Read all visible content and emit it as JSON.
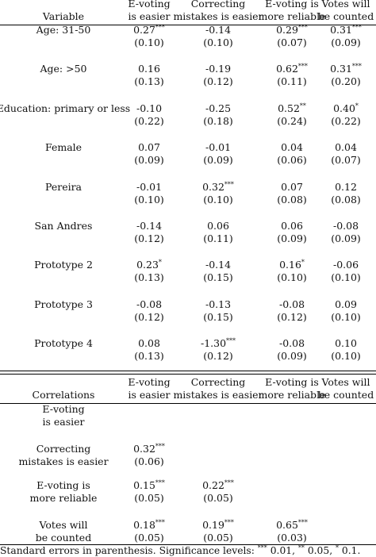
{
  "regression": {
    "columns": [
      [
        "E-voting",
        "is easier"
      ],
      [
        "Correcting",
        "mistakes is easier"
      ],
      [
        "E-voting is",
        "more reliable"
      ],
      [
        "Votes will",
        "be counted"
      ]
    ],
    "variable_header": "Variable",
    "rows": [
      {
        "label": "Age: 31-50",
        "coef": [
          [
            "0.27",
            "***"
          ],
          [
            "-0.14",
            ""
          ],
          [
            "0.29",
            "***"
          ],
          [
            "0.31",
            "***"
          ]
        ],
        "se": [
          "(0.10)",
          "(0.10)",
          "(0.07)",
          "(0.09)"
        ]
      },
      {
        "label": "Age: >50",
        "coef": [
          [
            "0.16",
            ""
          ],
          [
            "-0.19",
            ""
          ],
          [
            "0.62",
            "***"
          ],
          [
            "0.31",
            "***"
          ]
        ],
        "se": [
          "(0.13)",
          "(0.12)",
          "(0.11)",
          "(0.20)"
        ]
      },
      {
        "label": "Education: primary or less",
        "coef": [
          [
            "-0.10",
            ""
          ],
          [
            "-0.25",
            ""
          ],
          [
            "0.52",
            "**"
          ],
          [
            "0.40",
            "*"
          ]
        ],
        "se": [
          "(0.22)",
          "(0.18)",
          "(0.24)",
          "(0.22)"
        ]
      },
      {
        "label": "Female",
        "coef": [
          [
            "0.07",
            ""
          ],
          [
            "-0.01",
            ""
          ],
          [
            "0.04",
            ""
          ],
          [
            "0.04",
            ""
          ]
        ],
        "se": [
          "(0.09)",
          "(0.09)",
          "(0.06)",
          "(0.07)"
        ]
      },
      {
        "label": "Pereira",
        "coef": [
          [
            "-0.01",
            ""
          ],
          [
            "0.32",
            "***"
          ],
          [
            "0.07",
            ""
          ],
          [
            "0.12",
            ""
          ]
        ],
        "se": [
          "(0.10)",
          "(0.10)",
          "(0.08)",
          "(0.08)"
        ]
      },
      {
        "label": "San Andres",
        "coef": [
          [
            "-0.14",
            ""
          ],
          [
            "0.06",
            ""
          ],
          [
            "0.06",
            ""
          ],
          [
            "-0.08",
            ""
          ]
        ],
        "se": [
          "(0.12)",
          "(0.11)",
          "(0.09)",
          "(0.09)"
        ]
      },
      {
        "label": "Prototype 2",
        "coef": [
          [
            "0.23",
            "*"
          ],
          [
            "-0.14",
            ""
          ],
          [
            "0.16",
            "*"
          ],
          [
            "-0.06",
            ""
          ]
        ],
        "se": [
          "(0.13)",
          "(0.15)",
          "(0.10)",
          "(0.10)"
        ]
      },
      {
        "label": "Prototype 3",
        "coef": [
          [
            "-0.08",
            ""
          ],
          [
            "-0.13",
            ""
          ],
          [
            "-0.08",
            ""
          ],
          [
            "0.09",
            ""
          ]
        ],
        "se": [
          "(0.12)",
          "(0.15)",
          "(0.12)",
          "(0.10)"
        ]
      },
      {
        "label": "Prototype 4",
        "coef": [
          [
            "0.08",
            ""
          ],
          [
            "-1.30",
            "***"
          ],
          [
            "-0.08",
            ""
          ],
          [
            "0.10",
            ""
          ]
        ],
        "se": [
          "(0.13)",
          "(0.12)",
          "(0.09)",
          "(0.10)"
        ]
      }
    ]
  },
  "correlations": {
    "header": "Correlations",
    "columns": [
      [
        "E-voting",
        "is easier"
      ],
      [
        "Correcting",
        "mistakes is easier"
      ],
      [
        "E-voting is",
        "more reliable"
      ],
      [
        "Votes will",
        "be counted"
      ]
    ],
    "rows": [
      {
        "label": [
          "E-voting",
          "is easier"
        ],
        "coef": [],
        "se": []
      },
      {
        "label": [
          "Correcting",
          "mistakes is easier"
        ],
        "coef": [
          [
            "0.32",
            "***"
          ]
        ],
        "se": [
          "(0.06)"
        ]
      },
      {
        "label": [
          "E-voting is",
          "more reliable"
        ],
        "coef": [
          [
            "0.15",
            "***"
          ],
          [
            "0.22",
            "***"
          ]
        ],
        "se": [
          "(0.05)",
          "(0.05)"
        ]
      },
      {
        "label": [
          "Votes will",
          "be counted"
        ],
        "coef": [
          [
            "0.18",
            "***"
          ],
          [
            "0.19",
            "***"
          ],
          [
            "0.65",
            "***"
          ]
        ],
        "se": [
          "(0.05)",
          "(0.05)",
          "(0.03)"
        ]
      }
    ]
  },
  "footnote": {
    "prefix": "Standard errors in parenthesis. Significance levels: ",
    "levels": [
      [
        "***",
        " 0.01, "
      ],
      [
        "**",
        " 0.05, "
      ],
      [
        "*",
        " 0.1."
      ]
    ]
  }
}
